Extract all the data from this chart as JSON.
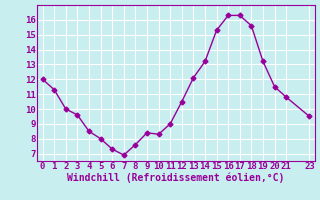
{
  "x": [
    0,
    1,
    2,
    3,
    4,
    5,
    6,
    7,
    8,
    9,
    10,
    11,
    12,
    13,
    14,
    15,
    16,
    17,
    18,
    19,
    20,
    21,
    23
  ],
  "y": [
    12.0,
    11.3,
    10.0,
    9.6,
    8.5,
    8.0,
    7.3,
    6.9,
    7.6,
    8.4,
    8.3,
    9.0,
    10.5,
    12.1,
    13.2,
    15.3,
    16.3,
    16.3,
    15.6,
    13.2,
    11.5,
    10.8,
    9.5
  ],
  "line_color": "#990099",
  "marker": "D",
  "marker_size": 2.5,
  "background_color": "#c8eef0",
  "grid_color": "#ffffff",
  "xlabel": "Windchill (Refroidissement éolien,°C)",
  "xlabel_color": "#990099",
  "tick_color": "#990099",
  "spine_color": "#990099",
  "ylim": [
    6.5,
    17.0
  ],
  "xlim": [
    -0.5,
    23.5
  ],
  "yticks": [
    7,
    8,
    9,
    10,
    11,
    12,
    13,
    14,
    15,
    16
  ],
  "xticks": [
    0,
    1,
    2,
    3,
    4,
    5,
    6,
    7,
    8,
    9,
    10,
    11,
    12,
    13,
    14,
    15,
    16,
    17,
    18,
    19,
    20,
    21,
    23
  ],
  "tick_fontsize": 6.5,
  "xlabel_fontsize": 7.0,
  "linewidth": 1.0
}
